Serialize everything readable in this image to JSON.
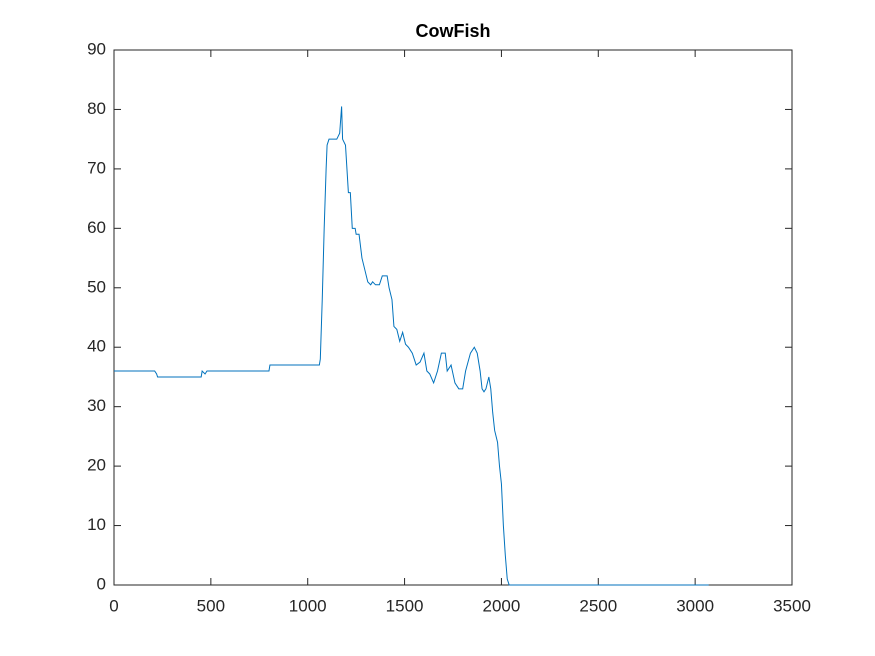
{
  "chart_data": {
    "type": "line",
    "title": "CowFish",
    "x": [
      0,
      210,
      220,
      225,
      450,
      455,
      470,
      480,
      800,
      805,
      1060,
      1065,
      1075,
      1085,
      1095,
      1100,
      1110,
      1150,
      1165,
      1175,
      1180,
      1195,
      1210,
      1220,
      1230,
      1245,
      1250,
      1265,
      1280,
      1295,
      1310,
      1325,
      1335,
      1350,
      1370,
      1385,
      1410,
      1420,
      1435,
      1445,
      1460,
      1475,
      1490,
      1505,
      1520,
      1540,
      1560,
      1580,
      1600,
      1615,
      1630,
      1650,
      1670,
      1690,
      1710,
      1720,
      1740,
      1760,
      1780,
      1800,
      1815,
      1840,
      1860,
      1875,
      1890,
      1900,
      1910,
      1920,
      1935,
      1945,
      1955,
      1965,
      1980,
      1990,
      2000,
      2010,
      2020,
      2030,
      2040,
      3070
    ],
    "values": [
      36,
      36,
      35.5,
      35,
      35,
      36,
      35.5,
      36,
      36,
      37,
      37,
      38,
      48,
      60,
      70,
      74,
      75,
      75,
      76,
      80.5,
      75,
      74,
      66,
      66,
      60,
      60,
      59,
      59,
      55,
      53,
      51,
      50.5,
      51,
      50.5,
      50.5,
      52,
      52,
      50,
      48,
      43.5,
      43,
      41,
      42.5,
      40.5,
      40,
      39,
      37,
      37.5,
      39,
      36,
      35.5,
      34,
      36,
      39,
      39,
      36,
      37,
      34,
      33,
      33,
      36,
      39,
      40,
      39,
      36,
      33,
      32.5,
      33,
      35,
      33,
      29,
      26,
      24,
      20,
      17,
      10,
      5,
      1,
      0,
      0
    ],
    "color": "#0072bd",
    "xlim": [
      0,
      3500
    ],
    "xticks": [
      0,
      500,
      1000,
      1500,
      2000,
      2500,
      3000,
      3500
    ],
    "ylim": [
      0,
      90
    ],
    "yticks": [
      0,
      10,
      20,
      30,
      40,
      50,
      60,
      70,
      80,
      90
    ]
  }
}
